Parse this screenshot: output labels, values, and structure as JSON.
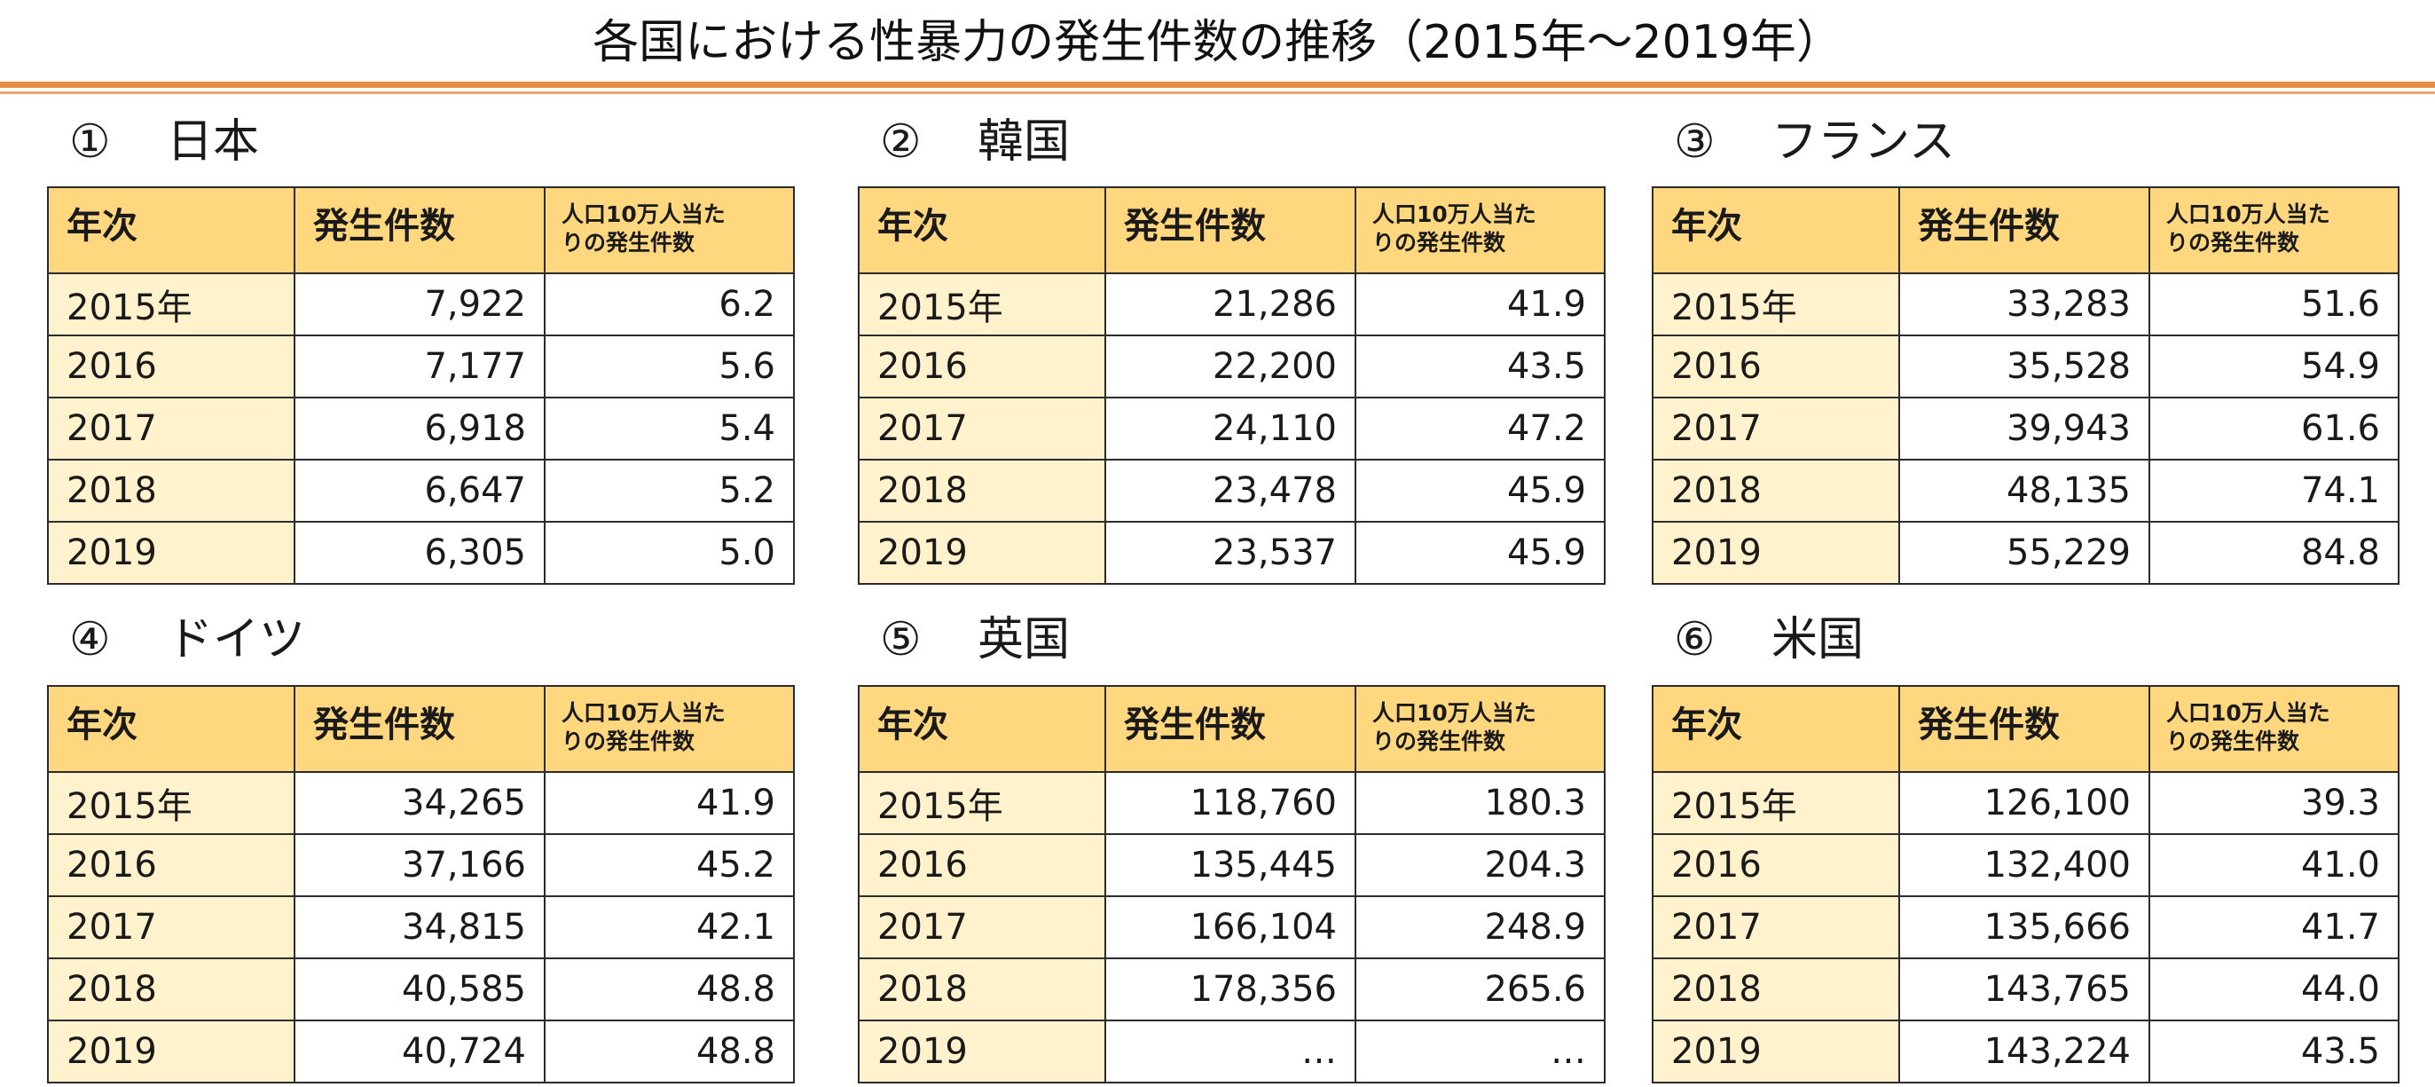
{
  "title": "各国における性暴力の発生件数の推移（2015年～2019年）",
  "headers": {
    "year": "年次",
    "count": "発生件数",
    "rate_line1": "人口10万人当た",
    "rate_line2": "りの発生件数"
  },
  "colors": {
    "header_bg": "#ffd77f",
    "year_bg": "#fff2cc",
    "rule": "#e38d45"
  },
  "countries": [
    {
      "num": "①",
      "name": "日本",
      "rows": [
        {
          "year": "2015年",
          "count": "7,922",
          "rate": "6.2"
        },
        {
          "year": "2016",
          "count": "7,177",
          "rate": "5.6"
        },
        {
          "year": "2017",
          "count": "6,918",
          "rate": "5.4"
        },
        {
          "year": "2018",
          "count": "6,647",
          "rate": "5.2"
        },
        {
          "year": "2019",
          "count": "6,305",
          "rate": "5.0"
        }
      ]
    },
    {
      "num": "②",
      "name": "韓国",
      "rows": [
        {
          "year": "2015年",
          "count": "21,286",
          "rate": "41.9"
        },
        {
          "year": "2016",
          "count": "22,200",
          "rate": "43.5"
        },
        {
          "year": "2017",
          "count": "24,110",
          "rate": "47.2"
        },
        {
          "year": "2018",
          "count": "23,478",
          "rate": "45.9"
        },
        {
          "year": "2019",
          "count": "23,537",
          "rate": "45.9"
        }
      ]
    },
    {
      "num": "③",
      "name": "フランス",
      "rows": [
        {
          "year": "2015年",
          "count": "33,283",
          "rate": "51.6"
        },
        {
          "year": "2016",
          "count": "35,528",
          "rate": "54.9"
        },
        {
          "year": "2017",
          "count": "39,943",
          "rate": "61.6"
        },
        {
          "year": "2018",
          "count": "48,135",
          "rate": "74.1"
        },
        {
          "year": "2019",
          "count": "55,229",
          "rate": "84.8"
        }
      ]
    },
    {
      "num": "④",
      "name": "ドイツ",
      "rows": [
        {
          "year": "2015年",
          "count": "34,265",
          "rate": "41.9"
        },
        {
          "year": "2016",
          "count": "37,166",
          "rate": "45.2"
        },
        {
          "year": "2017",
          "count": "34,815",
          "rate": "42.1"
        },
        {
          "year": "2018",
          "count": "40,585",
          "rate": "48.8"
        },
        {
          "year": "2019",
          "count": "40,724",
          "rate": "48.8"
        }
      ]
    },
    {
      "num": "⑤",
      "name": "英国",
      "rows": [
        {
          "year": "2015年",
          "count": "118,760",
          "rate": "180.3"
        },
        {
          "year": "2016",
          "count": "135,445",
          "rate": "204.3"
        },
        {
          "year": "2017",
          "count": "166,104",
          "rate": "248.9"
        },
        {
          "year": "2018",
          "count": "178,356",
          "rate": "265.6"
        },
        {
          "year": "2019",
          "count": "…",
          "rate": "…"
        }
      ]
    },
    {
      "num": "⑥",
      "name": "米国",
      "rows": [
        {
          "year": "2015年",
          "count": "126,100",
          "rate": "39.3"
        },
        {
          "year": "2016",
          "count": "132,400",
          "rate": "41.0"
        },
        {
          "year": "2017",
          "count": "135,666",
          "rate": "41.7"
        },
        {
          "year": "2018",
          "count": "143,765",
          "rate": "44.0"
        },
        {
          "year": "2019",
          "count": "143,224",
          "rate": "43.5"
        }
      ]
    }
  ]
}
